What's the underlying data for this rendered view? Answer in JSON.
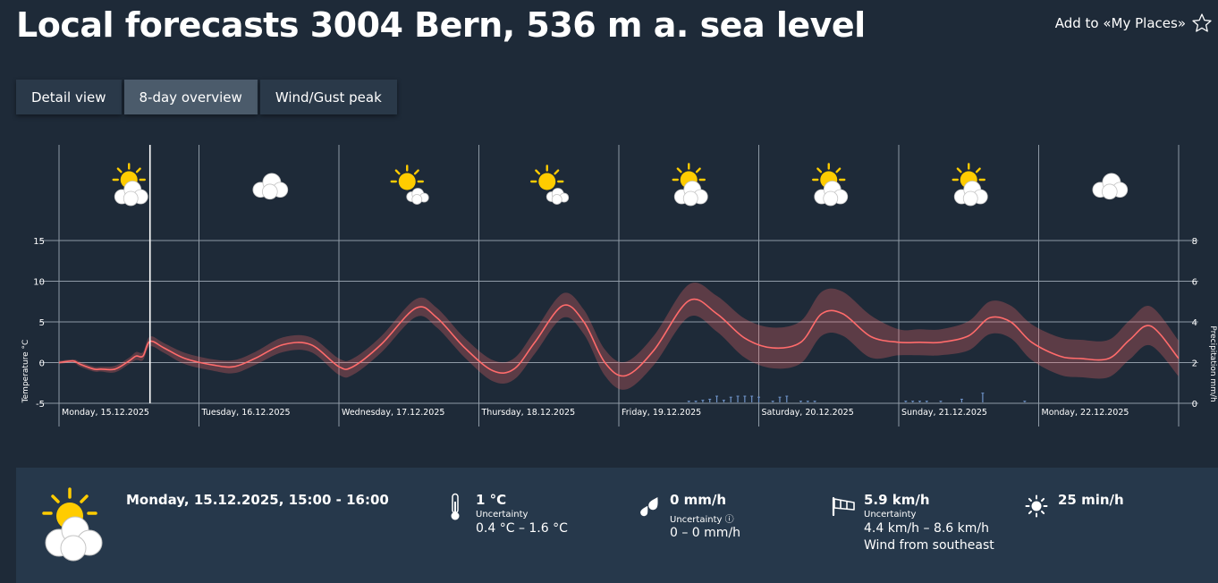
{
  "header": {
    "title": "Local forecasts 3004 Bern, 536 m a. sea level",
    "add_place_label": "Add to «My Places»"
  },
  "tabs": [
    {
      "label": "Detail view",
      "active": false
    },
    {
      "label": "8-day overview",
      "active": true
    },
    {
      "label": "Wind/Gust peak",
      "active": false
    }
  ],
  "days": [
    {
      "label": "Monday, 15.12.2025",
      "icon": "sun-cloud-icon"
    },
    {
      "label": "Tuesday, 16.12.2025",
      "icon": "cloud-icon"
    },
    {
      "label": "Wednesday, 17.12.2025",
      "icon": "sun-small-cloud-icon"
    },
    {
      "label": "Thursday, 18.12.2025",
      "icon": "sun-small-cloud-icon"
    },
    {
      "label": "Friday, 19.12.2025",
      "icon": "sun-cloud-icon"
    },
    {
      "label": "Saturday, 20.12.2025",
      "icon": "sun-cloud-icon"
    },
    {
      "label": "Sunday, 21.12.2025",
      "icon": "sun-cloud-icon"
    },
    {
      "label": "Monday, 22.12.2025",
      "icon": "cloud-icon"
    }
  ],
  "chart_data": {
    "type": "line",
    "ylabel": "Temperature °C",
    "y2label": "Precipitation mm/h",
    "ylim": [
      -5,
      15
    ],
    "y2lim": [
      0,
      8
    ],
    "yticks": [
      "15",
      "10",
      "5",
      "0",
      "-5"
    ],
    "y2ticks": [
      "8",
      "6",
      "4",
      "2",
      "0"
    ],
    "xlim": [
      0,
      8
    ],
    "cursor_x": 0.65,
    "series": [
      {
        "type": "line",
        "color": "#ff6b6b",
        "x": [
          0,
          0.1,
          0.15,
          0.25,
          0.3,
          0.4,
          0.5,
          0.55,
          0.6,
          0.65,
          0.75,
          0.9,
          1.1,
          1.25,
          1.4,
          1.6,
          1.8,
          2.0,
          2.1,
          2.3,
          2.55,
          2.7,
          2.9,
          3.1,
          3.25,
          3.4,
          3.6,
          3.75,
          3.9,
          4.05,
          4.25,
          4.5,
          4.7,
          4.9,
          5.1,
          5.3,
          5.45,
          5.6,
          5.8,
          6.0,
          6.15,
          6.3,
          6.5,
          6.65,
          6.8,
          6.95,
          7.15,
          7.3,
          7.5,
          7.65,
          7.8,
          8.0
        ],
        "y": [
          0,
          0.2,
          -0.2,
          -0.8,
          -0.8,
          -0.8,
          0.2,
          0.8,
          0.8,
          2.6,
          1.8,
          0.5,
          -0.3,
          -0.5,
          0.5,
          2.2,
          2.2,
          -0.5,
          -0.5,
          2.2,
          6.7,
          5.5,
          1.8,
          -1.0,
          -0.8,
          2.5,
          7.0,
          5.0,
          0.0,
          -1.6,
          1.5,
          7.6,
          6.0,
          3.0,
          1.8,
          2.5,
          6.0,
          6.0,
          3.2,
          2.5,
          2.5,
          2.5,
          3.3,
          5.5,
          5.0,
          2.5,
          0.8,
          0.5,
          0.5,
          2.8,
          4.5,
          0.5
        ]
      },
      {
        "type": "area",
        "color": "#ff6b6b",
        "role": "uncertainty",
        "x": [
          0,
          0.1,
          0.15,
          0.25,
          0.3,
          0.4,
          0.5,
          0.55,
          0.6,
          0.65,
          0.75,
          0.9,
          1.1,
          1.25,
          1.4,
          1.6,
          1.8,
          2.0,
          2.1,
          2.3,
          2.55,
          2.7,
          2.9,
          3.1,
          3.25,
          3.4,
          3.6,
          3.75,
          3.9,
          4.05,
          4.25,
          4.5,
          4.7,
          4.9,
          5.1,
          5.3,
          5.45,
          5.6,
          5.8,
          6.0,
          6.15,
          6.3,
          6.5,
          6.65,
          6.8,
          6.95,
          7.15,
          7.3,
          7.5,
          7.65,
          7.8,
          8.0
        ],
        "band": [
          0.2,
          0.2,
          0.3,
          0.3,
          0.3,
          0.4,
          0.4,
          0.5,
          0.5,
          0.6,
          0.6,
          0.7,
          0.7,
          0.8,
          0.8,
          0.9,
          0.9,
          1.0,
          1.0,
          1.0,
          1.1,
          1.2,
          1.2,
          1.3,
          1.3,
          1.4,
          1.5,
          1.5,
          1.6,
          1.7,
          1.8,
          2.0,
          2.2,
          2.4,
          2.5,
          2.6,
          2.7,
          2.7,
          2.6,
          1.6,
          1.6,
          1.6,
          1.8,
          2.0,
          2.0,
          2.2,
          2.3,
          2.3,
          2.3,
          2.4,
          2.4,
          2.2
        ]
      },
      {
        "type": "bar",
        "axis": "y2",
        "color": "#6f93c8",
        "role": "precipitation",
        "x": [
          4.5,
          4.55,
          4.6,
          4.65,
          4.7,
          4.75,
          4.8,
          4.85,
          4.9,
          4.95,
          5.0,
          5.1,
          5.15,
          5.2,
          5.3,
          5.35,
          5.4,
          6.05,
          6.1,
          6.15,
          6.2,
          6.3,
          6.45,
          6.6,
          6.9
        ],
        "values": [
          0.1,
          0.1,
          0.15,
          0.2,
          0.35,
          0.15,
          0.3,
          0.35,
          0.35,
          0.35,
          0.3,
          0.1,
          0.3,
          0.35,
          0.1,
          0.1,
          0.1,
          0.1,
          0.1,
          0.1,
          0.1,
          0.1,
          0.2,
          0.5,
          0.1
        ]
      }
    ]
  },
  "detail": {
    "icon": "sun-cloud-icon",
    "date": "Monday, 15.12.2025, 15:00 - 16:00",
    "temperature": {
      "value": "1 °C",
      "uncertainty_label": "Uncertainty",
      "range": "0.4 °C – 1.6 °C"
    },
    "precipitation": {
      "value": "0 mm/h",
      "uncertainty_label": "Uncertainty ⓘ",
      "range": "0 – 0 mm/h"
    },
    "wind": {
      "value": "5.9 km/h",
      "uncertainty_label": "Uncertainty",
      "range": "4.4 km/h – 8.6 km/h",
      "direction": "Wind from southeast"
    },
    "sunshine": {
      "value": "25 min/h"
    }
  }
}
